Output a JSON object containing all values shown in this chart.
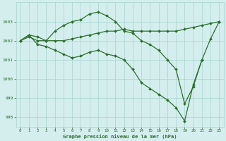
{
  "title": "Graphe pression niveau de la mer (hPa)",
  "background_color": "#d4eeed",
  "grid_color": "#a8d4d0",
  "line_color": "#2d6e2d",
  "marker": "D",
  "markersize": 2.0,
  "linewidth": 0.9,
  "xlim": [
    -0.5,
    23.5
  ],
  "ylim": [
    997.5,
    1004.0
  ],
  "yticks": [
    998,
    999,
    1000,
    1001,
    1002,
    1003
  ],
  "xticks": [
    0,
    1,
    2,
    3,
    4,
    5,
    6,
    7,
    8,
    9,
    10,
    11,
    12,
    13,
    14,
    15,
    16,
    17,
    18,
    19,
    20,
    21,
    22,
    23
  ],
  "series": [
    [
      1002.0,
      1002.3,
      1002.2,
      1002.0,
      1002.5,
      1002.8,
      1003.0,
      1003.1,
      1003.4,
      1003.5,
      1003.3,
      1003.0,
      1002.5,
      1002.4,
      1002.0,
      1001.8,
      1001.5,
      1001.0,
      1000.5,
      998.7,
      999.6,
      1001.0,
      1002.1,
      1003.0
    ],
    [
      1002.0,
      1002.2,
      1002.0,
      1002.0,
      1002.0,
      1002.0,
      1002.1,
      1002.2,
      1002.3,
      1002.4,
      1002.5,
      1002.5,
      1002.6,
      1002.5,
      1002.5,
      1002.5,
      1002.5,
      1002.5,
      1002.5,
      1002.6,
      1002.7,
      1002.8,
      1002.9,
      1003.0
    ],
    [
      1002.0,
      1002.3,
      1001.8,
      1001.7,
      1001.5,
      1001.3,
      1001.1,
      1001.2,
      1001.4,
      1001.5,
      1001.3,
      1001.2,
      1001.0,
      1000.5,
      999.8,
      999.5,
      999.2,
      998.9,
      998.5,
      997.8,
      999.7,
      1001.0,
      null,
      null
    ]
  ]
}
